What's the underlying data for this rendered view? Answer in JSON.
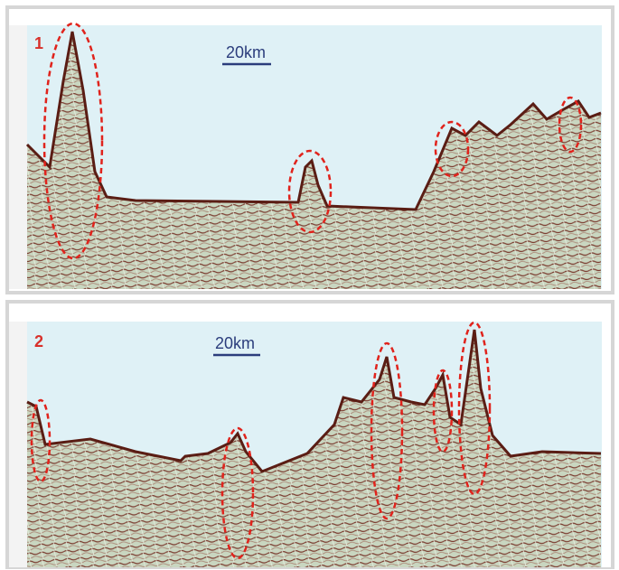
{
  "panels": [
    {
      "label": "1",
      "scale": "20km"
    },
    {
      "label": "2",
      "scale": "20km"
    }
  ]
}
